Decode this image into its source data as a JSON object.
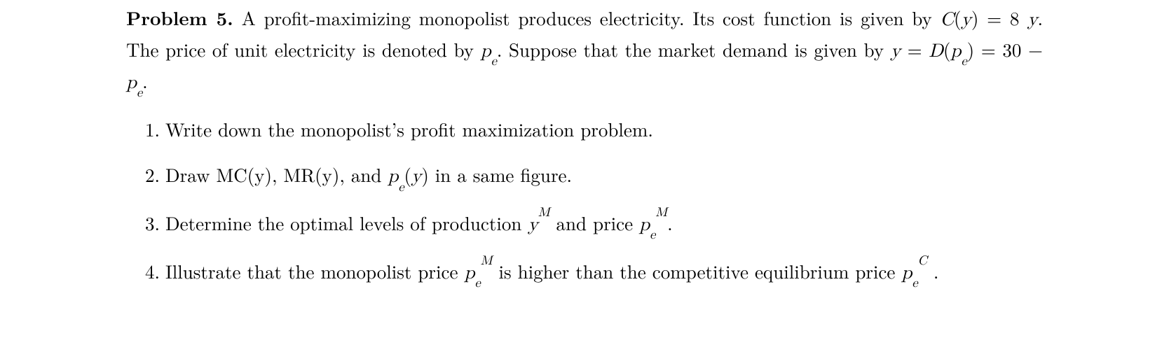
{
  "problem": {
    "label": "Problem 5.",
    "intro_html": "A profit-maximizing monopolist produces electricity. Its cost function is given by <span class=\"math\">C</span>(<span class=\"math\">y</span>) = 8 <span class=\"math\">y</span>. The price of unit electricity is denoted by <span class=\"math nobr\">p<sub>e</sub></span>. Suppose that the market demand is given by <span class=\"math\">y</span> = <span class=\"math\">D</span>(<span class=\"math nobr\">p<sub>e</sub></span>) = 30 − <span class=\"math nobr\">p<sub>e</sub></span>."
  },
  "items": [
    {
      "html": "Write down the monopolist’s profit maximization problem."
    },
    {
      "html": "Draw MC(y), MR(y), and <span class=\"math nobr\">p<sub>e</sub></span>(<span class=\"math\">y</span>) in a same figure."
    },
    {
      "html": "Determine the optimal levels of production <span class=\"math nobr\">y<sup>M</sup></span> and price <span class=\"math nobr\">p<sub>e</sub><sup>M</sup></span>."
    },
    {
      "html": "Illustrate that the monopolist price <span class=\"math nobr\">p<sub>e</sub><sup>M</sup></span> is higher than the competitive equilibrium price <span class=\"math nobr\">p<sub>e</sub><sup>C</sup></span> ."
    }
  ]
}
